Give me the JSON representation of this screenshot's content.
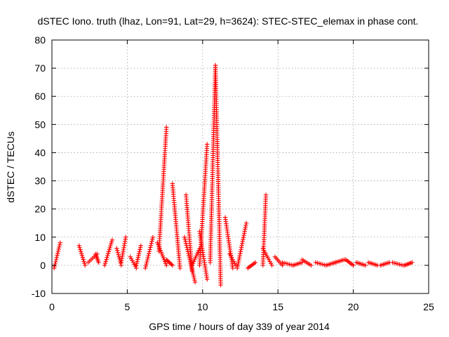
{
  "chart_data": {
    "type": "scatter",
    "title": "dSTEC Iono. truth (lhaz, Lon=91, Lat=29, h=3624): STEC-STEC_elemax in phase cont.",
    "xlabel": "GPS time / hours of day 339 of year 2014",
    "ylabel": "dSTEC  / TECUs",
    "xlim": [
      0,
      25
    ],
    "ylim": [
      -10,
      80
    ],
    "xticks": [
      0,
      5,
      10,
      15,
      20,
      25
    ],
    "yticks": [
      -10,
      0,
      10,
      20,
      30,
      40,
      50,
      60,
      70,
      80
    ],
    "xtick_labels": [
      "0",
      "5",
      "10",
      "15",
      "20",
      "25"
    ],
    "ytick_labels": [
      "-10",
      "0",
      "10",
      "20",
      "30",
      "40",
      "50",
      "60",
      "70",
      "80"
    ],
    "grid": true,
    "marker": "+",
    "marker_color": "#ff0000",
    "legend": "none",
    "arcs": [
      {
        "x0": 0.15,
        "x1": 0.55,
        "y0": -1,
        "y1": 8
      },
      {
        "x0": 1.8,
        "x1": 2.2,
        "y0": 7,
        "y1": 0
      },
      {
        "x0": 2.4,
        "x1": 3.0,
        "y0": 1,
        "y1": 4
      },
      {
        "x0": 2.9,
        "x1": 3.1,
        "y0": 4,
        "y1": 1
      },
      {
        "x0": 3.5,
        "x1": 4.0,
        "y0": 0,
        "y1": 9
      },
      {
        "x0": 4.3,
        "x1": 4.6,
        "y0": 6,
        "y1": 0
      },
      {
        "x0": 4.6,
        "x1": 4.9,
        "y0": 1,
        "y1": 10
      },
      {
        "x0": 5.2,
        "x1": 5.6,
        "y0": 3,
        "y1": -1
      },
      {
        "x0": 5.6,
        "x1": 5.9,
        "y0": 0,
        "y1": 7
      },
      {
        "x0": 6.2,
        "x1": 6.7,
        "y0": -1,
        "y1": 10
      },
      {
        "x0": 7.0,
        "x1": 7.6,
        "y0": 8,
        "y1": 0
      },
      {
        "x0": 7.1,
        "x1": 7.6,
        "y0": 5,
        "y1": 49
      },
      {
        "x0": 7.6,
        "x1": 8.0,
        "y0": 2,
        "y1": 0
      },
      {
        "x0": 8.0,
        "x1": 8.5,
        "y0": 29,
        "y1": -1
      },
      {
        "x0": 8.9,
        "x1": 9.3,
        "y0": 25,
        "y1": -2
      },
      {
        "x0": 8.8,
        "x1": 9.5,
        "y0": 10,
        "y1": -6
      },
      {
        "x0": 9.3,
        "x1": 9.8,
        "y0": 0,
        "y1": 6
      },
      {
        "x0": 9.8,
        "x1": 10.3,
        "y0": 12,
        "y1": -5
      },
      {
        "x0": 9.8,
        "x1": 10.3,
        "y0": 0,
        "y1": 43
      },
      {
        "x0": 10.5,
        "x1": 10.85,
        "y0": 1,
        "y1": 71
      },
      {
        "x0": 10.85,
        "x1": 11.2,
        "y0": 71,
        "y1": -7
      },
      {
        "x0": 11.5,
        "x1": 12.0,
        "y0": 17,
        "y1": -1
      },
      {
        "x0": 11.8,
        "x1": 12.2,
        "y0": 4,
        "y1": 0
      },
      {
        "x0": 12.3,
        "x1": 12.9,
        "y0": -1,
        "y1": 15
      },
      {
        "x0": 13.0,
        "x1": 13.5,
        "y0": -1,
        "y1": 1
      },
      {
        "x0": 14.0,
        "x1": 14.2,
        "y0": 0,
        "y1": 25
      },
      {
        "x0": 14.0,
        "x1": 14.6,
        "y0": 6,
        "y1": 0
      },
      {
        "x0": 14.8,
        "x1": 15.3,
        "y0": 3,
        "y1": 0
      },
      {
        "x0": 15.3,
        "x1": 16.0,
        "y0": 1,
        "y1": 0
      },
      {
        "x0": 16.0,
        "x1": 16.6,
        "y0": 0,
        "y1": 1
      },
      {
        "x0": 16.6,
        "x1": 17.2,
        "y0": 2,
        "y1": 0
      },
      {
        "x0": 17.5,
        "x1": 18.2,
        "y0": 1,
        "y1": 0
      },
      {
        "x0": 18.2,
        "x1": 18.8,
        "y0": 0,
        "y1": 1
      },
      {
        "x0": 18.8,
        "x1": 19.4,
        "y0": 1,
        "y1": 2
      },
      {
        "x0": 19.5,
        "x1": 20.0,
        "y0": 2,
        "y1": 0
      },
      {
        "x0": 20.2,
        "x1": 20.8,
        "y0": 1,
        "y1": 0
      },
      {
        "x0": 21.0,
        "x1": 21.6,
        "y0": 1,
        "y1": 0
      },
      {
        "x0": 21.8,
        "x1": 22.4,
        "y0": 0,
        "y1": 1
      },
      {
        "x0": 22.6,
        "x1": 23.3,
        "y0": 1,
        "y1": 0
      },
      {
        "x0": 23.4,
        "x1": 23.9,
        "y0": 0,
        "y1": 1
      }
    ]
  }
}
